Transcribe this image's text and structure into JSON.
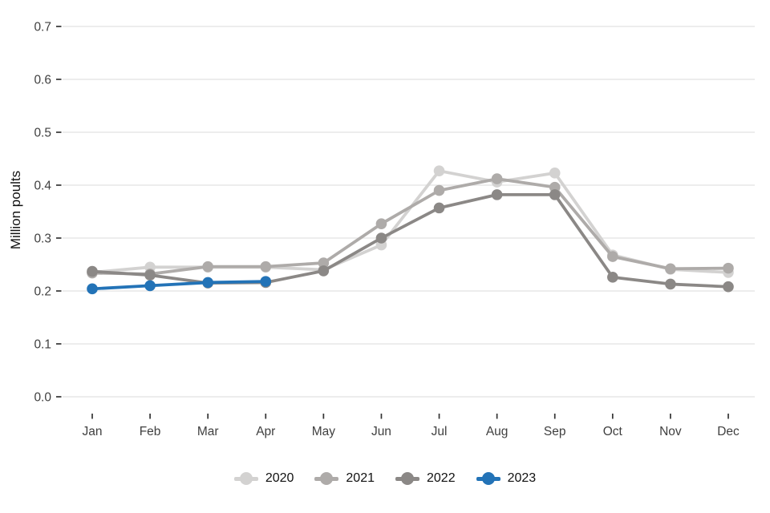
{
  "chart_data": {
    "type": "line",
    "title": "",
    "xlabel": "",
    "ylabel": "Million poults",
    "categories": [
      "Jan",
      "Feb",
      "Mar",
      "Apr",
      "May",
      "Jun",
      "Jul",
      "Aug",
      "Sep",
      "Oct",
      "Nov",
      "Dec"
    ],
    "yticks": [
      0.0,
      0.1,
      0.2,
      0.3,
      0.4,
      0.5,
      0.6,
      0.7
    ],
    "ylim": [
      0.0,
      0.7
    ],
    "grid": "horizontal-only",
    "legend_position": "bottom-center",
    "series": [
      {
        "name": "2020",
        "color": "#d3d2d1",
        "values": [
          0.235,
          0.245,
          0.245,
          0.245,
          0.24,
          0.287,
          0.427,
          0.406,
          0.423,
          0.268,
          0.241,
          0.235
        ]
      },
      {
        "name": "2021",
        "color": "#aeaba9",
        "values": [
          0.234,
          0.232,
          0.246,
          0.246,
          0.253,
          0.327,
          0.39,
          0.412,
          0.396,
          0.265,
          0.242,
          0.243
        ]
      },
      {
        "name": "2022",
        "color": "#8b8886",
        "values": [
          0.237,
          0.23,
          0.215,
          0.216,
          0.238,
          0.3,
          0.357,
          0.382,
          0.382,
          0.226,
          0.213,
          0.208
        ]
      },
      {
        "name": "2023",
        "color": "#2373b7",
        "values": [
          0.204,
          0.21,
          0.216,
          0.218,
          null,
          null,
          null,
          null,
          null,
          null,
          null,
          null
        ]
      }
    ],
    "colors": {
      "grid": "#e7e7e7",
      "tick": "#333333",
      "tick_label": "#404040",
      "axis_title": "#111111",
      "background": "#ffffff"
    }
  }
}
